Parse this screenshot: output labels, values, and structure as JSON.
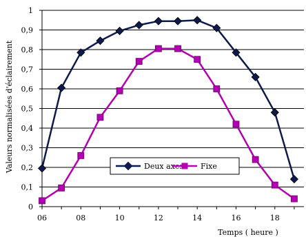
{
  "chart_data": {
    "type": "line",
    "xlabel": "Temps ( heure )",
    "ylabel": "Valeurs normalisées d'éclairement",
    "xlim": [
      6,
      19.5
    ],
    "ylim": [
      0,
      1
    ],
    "x_ticks": [
      "06",
      "08",
      "10",
      "12",
      "14",
      "16",
      "18"
    ],
    "y_ticks": [
      "0",
      "0,1",
      "0,2",
      "0,3",
      "0,4",
      "0,5",
      "0,6",
      "0,7",
      "0,8",
      "0,9",
      "1"
    ],
    "grid": "horizontal",
    "legend_position": "lower-center",
    "series": [
      {
        "name": "Deux axes",
        "color": "#0c1a4d",
        "marker": "diamond",
        "x": [
          6,
          7,
          8,
          9,
          10,
          11,
          12,
          13,
          14,
          15,
          16,
          17,
          18,
          19
        ],
        "values": [
          0.195,
          0.605,
          0.785,
          0.845,
          0.895,
          0.925,
          0.945,
          0.945,
          0.95,
          0.91,
          0.785,
          0.66,
          0.48,
          0.14
        ]
      },
      {
        "name": "Fixe",
        "color": "#b400b4",
        "marker": "square",
        "x": [
          6,
          7,
          8,
          9,
          10,
          11,
          12,
          13,
          14,
          15,
          16,
          17,
          18,
          19
        ],
        "values": [
          0.03,
          0.095,
          0.26,
          0.455,
          0.59,
          0.74,
          0.805,
          0.805,
          0.75,
          0.6,
          0.42,
          0.24,
          0.11,
          0.04
        ]
      }
    ]
  }
}
